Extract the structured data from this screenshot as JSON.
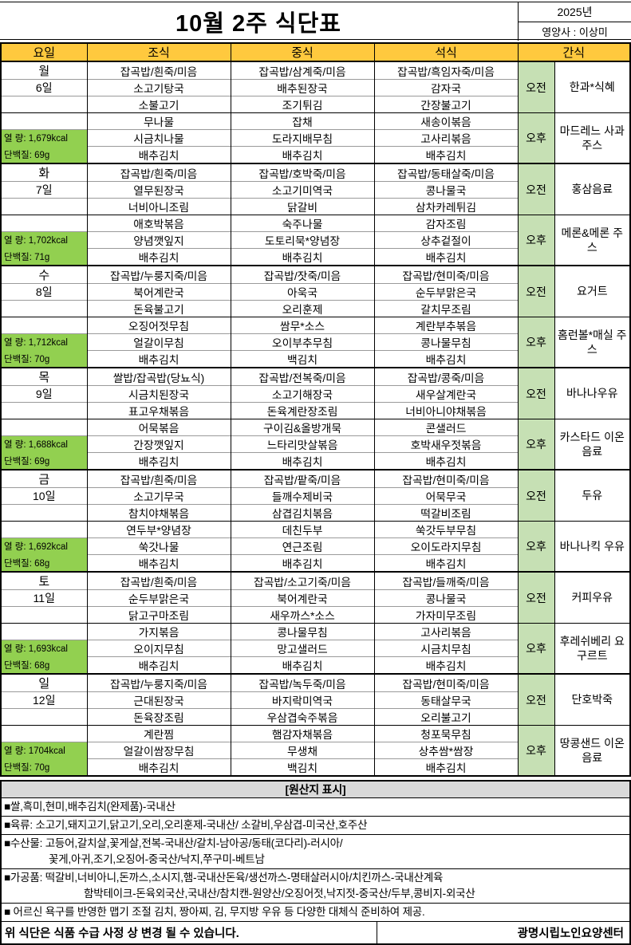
{
  "title": "10월 2주 식단표",
  "year": "2025년",
  "nutritionist": "영양사 : 이상미",
  "columns": {
    "day": "요일",
    "breakfast": "조식",
    "lunch": "중식",
    "dinner": "석식",
    "snack": "간식"
  },
  "am_label": "오전",
  "pm_label": "오후",
  "colors": {
    "header_yellow": "#FFC93E",
    "kcal_green": "#92D050",
    "ampm_green": "#C6E0B4",
    "origin_gray": "#D9D9D9"
  },
  "days": [
    {
      "day": "월",
      "date": "6일",
      "kcal": "열  량: 1,679kcal",
      "protein": "단백질: 69g",
      "breakfast": [
        "잡곡밥/흰죽/미음",
        "소고기탕국",
        "소불고기",
        "무나물",
        "시금치나물",
        "배추김치"
      ],
      "lunch": [
        "잡곡밥/삼계죽/미음",
        "배추된장국",
        "조기튀김",
        "잡채",
        "도라지배무침",
        "배추김치"
      ],
      "dinner": [
        "잡곡밥/흑임자죽/미음",
        "감자국",
        "간장불고기",
        "새송이볶음",
        "고사리볶음",
        "배추김치"
      ],
      "am_snack": "한과*식혜",
      "pm_snack": "마드레느 사과주스"
    },
    {
      "day": "화",
      "date": "7일",
      "kcal": "열  량: 1,702kcal",
      "protein": "단백질: 71g",
      "breakfast": [
        "잡곡밥/흰죽/미음",
        "열무된장국",
        "너비아니조림",
        "애호박볶음",
        "양념깻잎지",
        "배추김치"
      ],
      "lunch": [
        "잡곡밥/호박죽/미음",
        "소고기미역국",
        "닭갈비",
        "숙주나물",
        "도토리묵*양념장",
        "배추김치"
      ],
      "dinner": [
        "잡곡밥/동태살죽/미음",
        "콩나물국",
        "삼차카레튀김",
        "감자조림",
        "상추겉절이",
        "배추김치"
      ],
      "am_snack": "홍삼음료",
      "pm_snack": "메론&메론 주스"
    },
    {
      "day": "수",
      "date": "8일",
      "kcal": "열  량: 1,712kcal",
      "protein": "단백질: 70g",
      "breakfast": [
        "잡곡밥/누룽지죽/미음",
        "북어계란국",
        "돈육불고기",
        "오징어젓무침",
        "얼갈이무침",
        "배추김치"
      ],
      "lunch": [
        "잡곡밥/잣죽/미음",
        "아욱국",
        "오리훈제",
        "쌈무*소스",
        "오이부추무침",
        "백김치"
      ],
      "dinner": [
        "잡곡밥/현미죽/미음",
        "순두부맑은국",
        "갈치무조림",
        "계란부추볶음",
        "콩나물무침",
        "배추김치"
      ],
      "am_snack": "요거트",
      "pm_snack": "홈런볼*매실 주스"
    },
    {
      "day": "목",
      "date": "9일",
      "kcal": "열  량: 1,688kcal",
      "protein": "단백질: 69g",
      "breakfast": [
        "쌀밥/잡곡밥(당뇨식)",
        "시금치된장국",
        "표고우채볶음",
        "어묵볶음",
        "간장깻잎지",
        "배추김치"
      ],
      "lunch": [
        "잡곡밥/전복죽/미음",
        "소고기해장국",
        "돈육계란장조림",
        "구이김&올방개묵",
        "느타리맛살볶음",
        "배추김치"
      ],
      "dinner": [
        "잡곡밥/콩죽/미음",
        "새우살계란국",
        "너비아니야채볶음",
        "콘샐러드",
        "호박새우젓볶음",
        "배추김치"
      ],
      "am_snack": "바나나우유",
      "pm_snack": "카스타드 이온음료"
    },
    {
      "day": "금",
      "date": "10일",
      "kcal": "열  량: 1,692kcal",
      "protein": "단백질: 68g",
      "breakfast": [
        "잡곡밥/흰죽/미음",
        "소고기무국",
        "참치야채볶음",
        "연두부*양념장",
        "쑥갓나물",
        "배추김치"
      ],
      "lunch": [
        "잡곡밥/팥죽/미음",
        "들깨수제비국",
        "삼겹김치볶음",
        "데친두부",
        "연근조림",
        "배추김치"
      ],
      "dinner": [
        "잡곡밥/현미죽/미음",
        "어묵무국",
        "떡갈비조림",
        "쑥갓두부무침",
        "오이도라지무침",
        "배추김치"
      ],
      "am_snack": "두유",
      "pm_snack": "바나나킥 우유"
    },
    {
      "day": "토",
      "date": "11일",
      "kcal": "열  량: 1,693kcal",
      "protein": "단백질: 68g",
      "breakfast": [
        "잡곡밥/흰죽/미음",
        "순두부맑은국",
        "닭고구마조림",
        "가지볶음",
        "오이지무침",
        "배추김치"
      ],
      "lunch": [
        "잡곡밥/소고기죽/미음",
        "북어계란국",
        "새우까스*소스",
        "콩나물무침",
        "망고샐러드",
        "배추김치"
      ],
      "dinner": [
        "잡곡밥/들깨죽/미음",
        "콩나물국",
        "가자미무조림",
        "고사리볶음",
        "시금치무침",
        "배추김치"
      ],
      "am_snack": "커피우유",
      "pm_snack": "후레쉬베리 요구르트"
    },
    {
      "day": "일",
      "date": "12일",
      "kcal": "열  량: 1704kcal",
      "protein": "단백질: 70g",
      "breakfast": [
        "잡곡밥/누룽지죽/미음",
        "근대된장국",
        "돈육장조림",
        "계란찜",
        "얼갈이쌈장무침",
        "배추김치"
      ],
      "lunch": [
        "잡곡밥/녹두죽/미음",
        "바지락미역국",
        "우삼겹숙주볶음",
        "햄감자채볶음",
        "무생채",
        "백김치"
      ],
      "dinner": [
        "잡곡밥/현미죽/미음",
        "동태살무국",
        "오리불고기",
        "청포묵무침",
        "상추쌈*쌈장",
        "배추김치"
      ],
      "am_snack": "단호박죽",
      "pm_snack": "땅콩샌드 이온음료"
    }
  ],
  "origin": {
    "rows": [
      {
        "header": true,
        "lines": [
          "[원산지 표시]"
        ]
      },
      {
        "header": false,
        "lines": [
          "■쌀,흑미,현미,배추김치(완제품)-국내산"
        ]
      },
      {
        "header": false,
        "lines": [
          "■육류: 소고기,돼지고기,닭고기,오리,오리훈제-국내산/ 소갈비,우삼겹-미국산,호주산"
        ]
      },
      {
        "header": false,
        "lines": [
          "■수산물: 고등어,갈치살,꽃게살,전복-국내산/갈치-남아공/동태(코다리)-러시아/",
          "꽃게,아귀,조기,오징어-중국산/낙지,쭈구미-베트남"
        ]
      },
      {
        "header": false,
        "lines": [
          "■가공품: 떡갈비,너비아니,돈까스,소시지,햄-국내산돈육/생선까스-명태살러시아/치킨까스-국내산계육",
          "함박테이크-돈육외국산,국내산/참치캔-원양산/오징어젓,낙지젓-중국산/두부,콩비지-외국산"
        ]
      },
      {
        "header": false,
        "lines": [
          "■ 어르신 욕구를 반영한 맵기 조절 김치, 짱아찌, 김, 무지방 우유 등 다양한 대체식 준비하여 제공."
        ]
      }
    ]
  },
  "footer": {
    "left": "위 식단은 식품 수급 사정 상 변경 될 수 있습니다.",
    "right": "광명시립노인요양센터"
  }
}
